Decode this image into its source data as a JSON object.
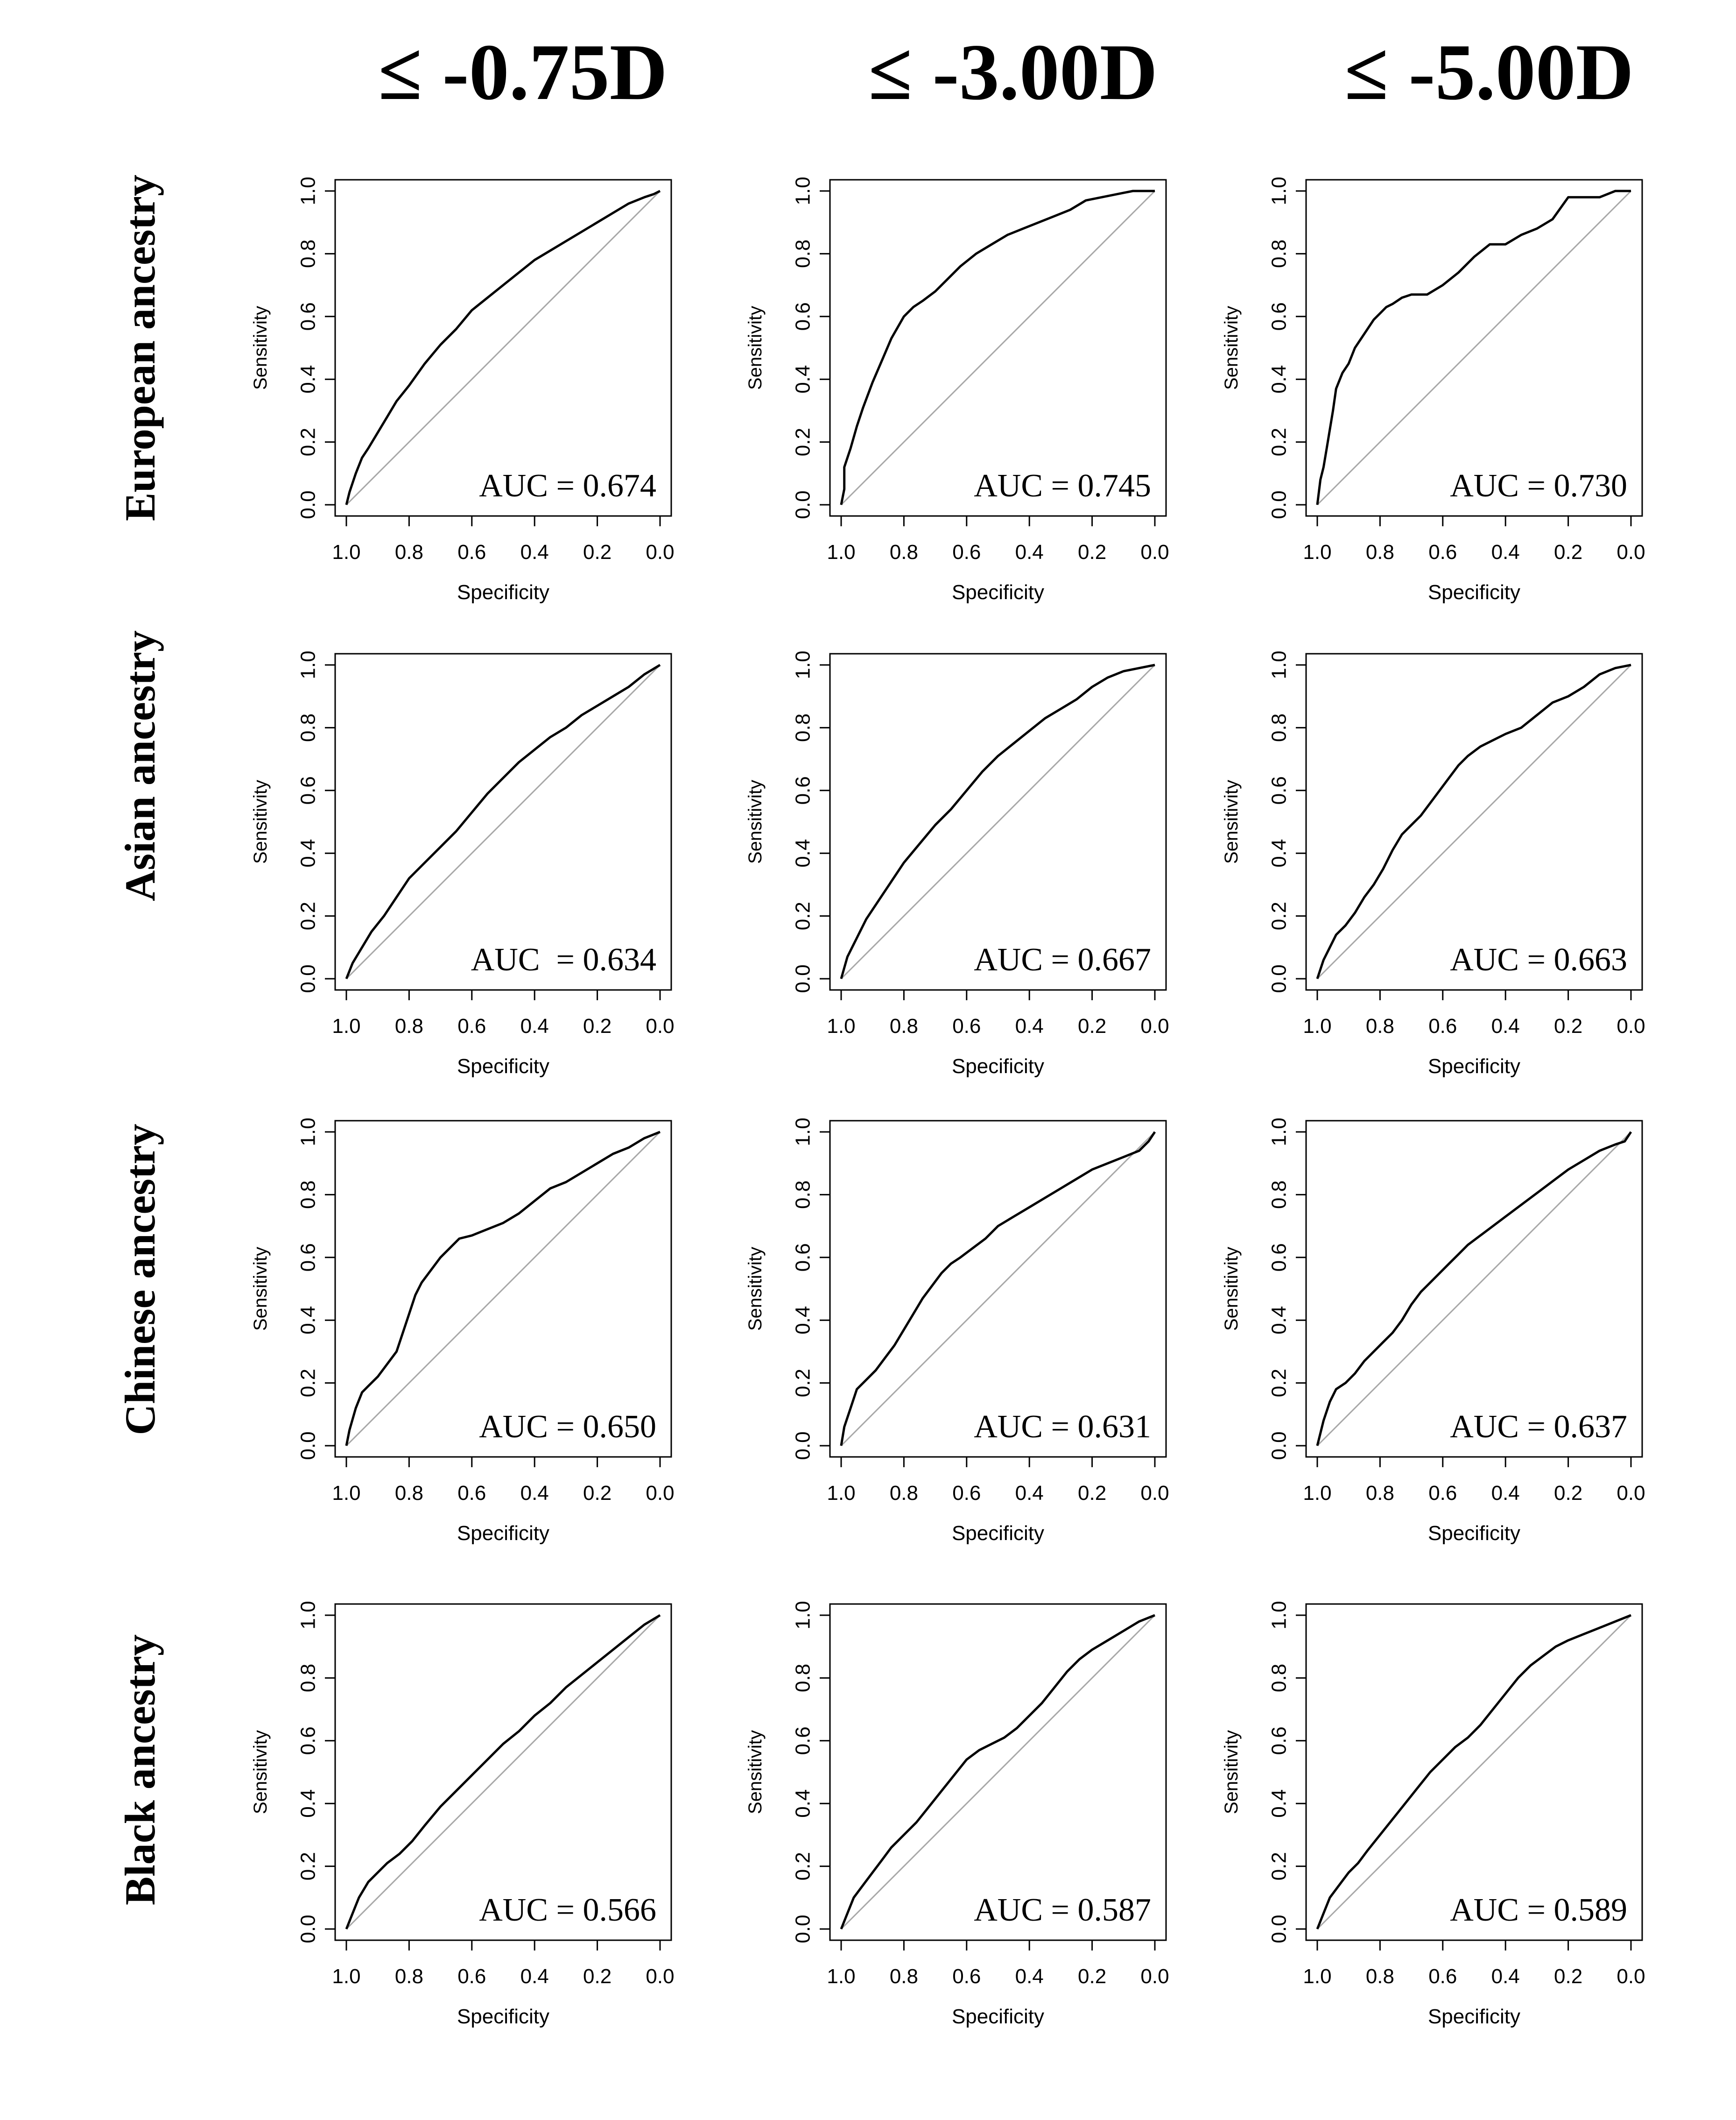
{
  "column_headers": [
    "≤ -0.75D",
    "≤  -3.00D",
    "≤ -5.00D"
  ],
  "row_labels": [
    "European ancestry",
    "Asian ancestry",
    "Chinese ancestry",
    "Black ancestry"
  ],
  "chart_data": [
    {
      "type": "line",
      "row": "European ancestry",
      "column": "≤ -0.75D",
      "xlabel": "Specificity",
      "ylabel": "Sensitivity",
      "xlim": [
        1.0,
        0.0
      ],
      "ylim": [
        0.0,
        1.0
      ],
      "x_ticks": [
        "1.0",
        "0.8",
        "0.6",
        "0.4",
        "0.2",
        "0.0"
      ],
      "y_ticks": [
        "0.0",
        "0.2",
        "0.4",
        "0.6",
        "0.8",
        "1.0"
      ],
      "annotation": "AUC = 0.674",
      "auc": 0.674,
      "diagonal_reference": true,
      "x": [
        1.0,
        0.99,
        0.97,
        0.95,
        0.93,
        0.9,
        0.87,
        0.84,
        0.8,
        0.75,
        0.7,
        0.65,
        0.6,
        0.55,
        0.5,
        0.45,
        0.4,
        0.35,
        0.3,
        0.25,
        0.2,
        0.15,
        0.1,
        0.05,
        0.02,
        0.0
      ],
      "y": [
        0.0,
        0.04,
        0.1,
        0.15,
        0.18,
        0.23,
        0.28,
        0.33,
        0.38,
        0.45,
        0.51,
        0.56,
        0.62,
        0.66,
        0.7,
        0.74,
        0.78,
        0.81,
        0.84,
        0.87,
        0.9,
        0.93,
        0.96,
        0.98,
        0.99,
        1.0
      ]
    },
    {
      "type": "line",
      "row": "European ancestry",
      "column": "≤  -3.00D",
      "xlabel": "Specificity",
      "ylabel": "Sensitivity",
      "xlim": [
        1.0,
        0.0
      ],
      "ylim": [
        0.0,
        1.0
      ],
      "x_ticks": [
        "1.0",
        "0.8",
        "0.6",
        "0.4",
        "0.2",
        "0.0"
      ],
      "y_ticks": [
        "0.0",
        "0.2",
        "0.4",
        "0.6",
        "0.8",
        "1.0"
      ],
      "annotation": "AUC = 0.745",
      "auc": 0.745,
      "diagonal_reference": true,
      "x": [
        1.0,
        0.99,
        0.99,
        0.97,
        0.95,
        0.93,
        0.9,
        0.87,
        0.84,
        0.8,
        0.77,
        0.74,
        0.7,
        0.66,
        0.62,
        0.57,
        0.52,
        0.47,
        0.42,
        0.37,
        0.32,
        0.27,
        0.22,
        0.17,
        0.12,
        0.07,
        0.0
      ],
      "y": [
        0.0,
        0.05,
        0.12,
        0.18,
        0.25,
        0.31,
        0.39,
        0.46,
        0.53,
        0.6,
        0.63,
        0.65,
        0.68,
        0.72,
        0.76,
        0.8,
        0.83,
        0.86,
        0.88,
        0.9,
        0.92,
        0.94,
        0.97,
        0.98,
        0.99,
        1.0,
        1.0
      ]
    },
    {
      "type": "line",
      "row": "European ancestry",
      "column": "≤ -5.00D",
      "xlabel": "Specificity",
      "ylabel": "Sensitivity",
      "xlim": [
        1.0,
        0.0
      ],
      "ylim": [
        0.0,
        1.0
      ],
      "x_ticks": [
        "1.0",
        "0.8",
        "0.6",
        "0.4",
        "0.2",
        "0.0"
      ],
      "y_ticks": [
        "0.0",
        "0.2",
        "0.4",
        "0.6",
        "0.8",
        "1.0"
      ],
      "annotation": "AUC = 0.730",
      "auc": 0.73,
      "diagonal_reference": true,
      "x": [
        1.0,
        0.99,
        0.98,
        0.97,
        0.96,
        0.95,
        0.94,
        0.92,
        0.9,
        0.88,
        0.86,
        0.84,
        0.82,
        0.8,
        0.78,
        0.76,
        0.73,
        0.7,
        0.65,
        0.6,
        0.55,
        0.5,
        0.45,
        0.4,
        0.35,
        0.3,
        0.25,
        0.2,
        0.15,
        0.1,
        0.05,
        0.0
      ],
      "y": [
        0.0,
        0.08,
        0.12,
        0.18,
        0.24,
        0.3,
        0.37,
        0.42,
        0.45,
        0.5,
        0.53,
        0.56,
        0.59,
        0.61,
        0.63,
        0.64,
        0.66,
        0.67,
        0.67,
        0.7,
        0.74,
        0.79,
        0.83,
        0.83,
        0.86,
        0.88,
        0.91,
        0.98,
        0.98,
        0.98,
        1.0,
        1.0
      ]
    },
    {
      "type": "line",
      "row": "Asian ancestry",
      "column": "≤ -0.75D",
      "xlabel": "Specificity",
      "ylabel": "Sensitivity",
      "xlim": [
        1.0,
        0.0
      ],
      "ylim": [
        0.0,
        1.0
      ],
      "x_ticks": [
        "1.0",
        "0.8",
        "0.6",
        "0.4",
        "0.2",
        "0.0"
      ],
      "y_ticks": [
        "0.0",
        "0.2",
        "0.4",
        "0.6",
        "0.8",
        "1.0"
      ],
      "annotation": "AUC  = 0.634",
      "auc": 0.634,
      "diagonal_reference": true,
      "x": [
        1.0,
        0.98,
        0.95,
        0.92,
        0.88,
        0.84,
        0.8,
        0.75,
        0.7,
        0.65,
        0.6,
        0.55,
        0.5,
        0.45,
        0.4,
        0.35,
        0.3,
        0.25,
        0.2,
        0.15,
        0.1,
        0.05,
        0.0
      ],
      "y": [
        0.0,
        0.05,
        0.1,
        0.15,
        0.2,
        0.26,
        0.32,
        0.37,
        0.42,
        0.47,
        0.53,
        0.59,
        0.64,
        0.69,
        0.73,
        0.77,
        0.8,
        0.84,
        0.87,
        0.9,
        0.93,
        0.97,
        1.0
      ]
    },
    {
      "type": "line",
      "row": "Asian ancestry",
      "column": "≤  -3.00D",
      "xlabel": "Specificity",
      "ylabel": "Sensitivity",
      "xlim": [
        1.0,
        0.0
      ],
      "ylim": [
        0.0,
        1.0
      ],
      "x_ticks": [
        "1.0",
        "0.8",
        "0.6",
        "0.4",
        "0.2",
        "0.0"
      ],
      "y_ticks": [
        "0.0",
        "0.2",
        "0.4",
        "0.6",
        "0.8",
        "1.0"
      ],
      "annotation": "AUC = 0.667",
      "auc": 0.667,
      "diagonal_reference": true,
      "x": [
        1.0,
        0.98,
        0.95,
        0.92,
        0.88,
        0.84,
        0.8,
        0.75,
        0.7,
        0.65,
        0.6,
        0.55,
        0.5,
        0.45,
        0.4,
        0.35,
        0.3,
        0.25,
        0.2,
        0.15,
        0.1,
        0.05,
        0.0
      ],
      "y": [
        0.0,
        0.07,
        0.13,
        0.19,
        0.25,
        0.31,
        0.37,
        0.43,
        0.49,
        0.54,
        0.6,
        0.66,
        0.71,
        0.75,
        0.79,
        0.83,
        0.86,
        0.89,
        0.93,
        0.96,
        0.98,
        0.99,
        1.0
      ]
    },
    {
      "type": "line",
      "row": "Asian ancestry",
      "column": "≤ -5.00D",
      "xlabel": "Specificity",
      "ylabel": "Sensitivity",
      "xlim": [
        1.0,
        0.0
      ],
      "ylim": [
        0.0,
        1.0
      ],
      "x_ticks": [
        "1.0",
        "0.8",
        "0.6",
        "0.4",
        "0.2",
        "0.0"
      ],
      "y_ticks": [
        "0.0",
        "0.2",
        "0.4",
        "0.6",
        "0.8",
        "1.0"
      ],
      "annotation": "AUC = 0.663",
      "auc": 0.663,
      "diagonal_reference": true,
      "x": [
        1.0,
        0.98,
        0.96,
        0.94,
        0.91,
        0.88,
        0.85,
        0.82,
        0.79,
        0.76,
        0.73,
        0.7,
        0.67,
        0.64,
        0.61,
        0.58,
        0.55,
        0.52,
        0.48,
        0.44,
        0.4,
        0.35,
        0.3,
        0.25,
        0.2,
        0.15,
        0.1,
        0.05,
        0.0
      ],
      "y": [
        0.0,
        0.06,
        0.1,
        0.14,
        0.17,
        0.21,
        0.26,
        0.3,
        0.35,
        0.41,
        0.46,
        0.49,
        0.52,
        0.56,
        0.6,
        0.64,
        0.68,
        0.71,
        0.74,
        0.76,
        0.78,
        0.8,
        0.84,
        0.88,
        0.9,
        0.93,
        0.97,
        0.99,
        1.0
      ]
    },
    {
      "type": "line",
      "row": "Chinese ancestry",
      "column": "≤ -0.75D",
      "xlabel": "Specificity",
      "ylabel": "Sensitivity",
      "xlim": [
        1.0,
        0.0
      ],
      "ylim": [
        0.0,
        1.0
      ],
      "x_ticks": [
        "1.0",
        "0.8",
        "0.6",
        "0.4",
        "0.2",
        "0.0"
      ],
      "y_ticks": [
        "0.0",
        "0.2",
        "0.4",
        "0.6",
        "0.8",
        "1.0"
      ],
      "annotation": "AUC = 0.650",
      "auc": 0.65,
      "diagonal_reference": true,
      "x": [
        1.0,
        0.99,
        0.97,
        0.95,
        0.93,
        0.9,
        0.87,
        0.84,
        0.82,
        0.8,
        0.78,
        0.76,
        0.73,
        0.7,
        0.67,
        0.64,
        0.6,
        0.55,
        0.5,
        0.45,
        0.4,
        0.35,
        0.3,
        0.25,
        0.2,
        0.15,
        0.1,
        0.05,
        0.0
      ],
      "y": [
        0.0,
        0.05,
        0.12,
        0.17,
        0.19,
        0.22,
        0.26,
        0.3,
        0.36,
        0.42,
        0.48,
        0.52,
        0.56,
        0.6,
        0.63,
        0.66,
        0.67,
        0.69,
        0.71,
        0.74,
        0.78,
        0.82,
        0.84,
        0.87,
        0.9,
        0.93,
        0.95,
        0.98,
        1.0
      ]
    },
    {
      "type": "line",
      "row": "Chinese ancestry",
      "column": "≤  -3.00D",
      "xlabel": "Specificity",
      "ylabel": "Sensitivity",
      "xlim": [
        1.0,
        0.0
      ],
      "ylim": [
        0.0,
        1.0
      ],
      "x_ticks": [
        "1.0",
        "0.8",
        "0.6",
        "0.4",
        "0.2",
        "0.0"
      ],
      "y_ticks": [
        "0.0",
        "0.2",
        "0.4",
        "0.6",
        "0.8",
        "1.0"
      ],
      "annotation": "AUC = 0.631",
      "auc": 0.631,
      "diagonal_reference": true,
      "x": [
        1.0,
        0.99,
        0.97,
        0.95,
        0.92,
        0.89,
        0.86,
        0.83,
        0.8,
        0.77,
        0.74,
        0.71,
        0.68,
        0.65,
        0.62,
        0.58,
        0.54,
        0.5,
        0.45,
        0.4,
        0.35,
        0.3,
        0.25,
        0.2,
        0.15,
        0.1,
        0.05,
        0.02,
        0.0
      ],
      "y": [
        0.0,
        0.06,
        0.12,
        0.18,
        0.21,
        0.24,
        0.28,
        0.32,
        0.37,
        0.42,
        0.47,
        0.51,
        0.55,
        0.58,
        0.6,
        0.63,
        0.66,
        0.7,
        0.73,
        0.76,
        0.79,
        0.82,
        0.85,
        0.88,
        0.9,
        0.92,
        0.94,
        0.97,
        1.0
      ]
    },
    {
      "type": "line",
      "row": "Chinese ancestry",
      "column": "≤ -5.00D",
      "xlabel": "Specificity",
      "ylabel": "Sensitivity",
      "xlim": [
        1.0,
        0.0
      ],
      "ylim": [
        0.0,
        1.0
      ],
      "x_ticks": [
        "1.0",
        "0.8",
        "0.6",
        "0.4",
        "0.2",
        "0.0"
      ],
      "y_ticks": [
        "0.0",
        "0.2",
        "0.4",
        "0.6",
        "0.8",
        "1.0"
      ],
      "annotation": "AUC = 0.637",
      "auc": 0.637,
      "diagonal_reference": true,
      "x": [
        1.0,
        0.98,
        0.96,
        0.94,
        0.91,
        0.88,
        0.85,
        0.82,
        0.79,
        0.76,
        0.73,
        0.7,
        0.67,
        0.64,
        0.61,
        0.58,
        0.55,
        0.52,
        0.48,
        0.44,
        0.4,
        0.36,
        0.32,
        0.28,
        0.24,
        0.2,
        0.15,
        0.1,
        0.05,
        0.02,
        0.0
      ],
      "y": [
        0.0,
        0.08,
        0.14,
        0.18,
        0.2,
        0.23,
        0.27,
        0.3,
        0.33,
        0.36,
        0.4,
        0.45,
        0.49,
        0.52,
        0.55,
        0.58,
        0.61,
        0.64,
        0.67,
        0.7,
        0.73,
        0.76,
        0.79,
        0.82,
        0.85,
        0.88,
        0.91,
        0.94,
        0.96,
        0.97,
        1.0
      ]
    },
    {
      "type": "line",
      "row": "Black ancestry",
      "column": "≤ -0.75D",
      "xlabel": "Specificity",
      "ylabel": "Sensitivity",
      "xlim": [
        1.0,
        0.0
      ],
      "ylim": [
        0.0,
        1.0
      ],
      "x_ticks": [
        "1.0",
        "0.8",
        "0.6",
        "0.4",
        "0.2",
        "0.0"
      ],
      "y_ticks": [
        "0.0",
        "0.2",
        "0.4",
        "0.6",
        "0.8",
        "1.0"
      ],
      "annotation": "AUC = 0.566",
      "auc": 0.566,
      "diagonal_reference": true,
      "x": [
        1.0,
        0.98,
        0.96,
        0.93,
        0.9,
        0.87,
        0.83,
        0.79,
        0.75,
        0.7,
        0.65,
        0.6,
        0.55,
        0.5,
        0.45,
        0.4,
        0.35,
        0.3,
        0.25,
        0.2,
        0.15,
        0.1,
        0.05,
        0.0
      ],
      "y": [
        0.0,
        0.05,
        0.1,
        0.15,
        0.18,
        0.21,
        0.24,
        0.28,
        0.33,
        0.39,
        0.44,
        0.49,
        0.54,
        0.59,
        0.63,
        0.68,
        0.72,
        0.77,
        0.81,
        0.85,
        0.89,
        0.93,
        0.97,
        1.0
      ]
    },
    {
      "type": "line",
      "row": "Black ancestry",
      "column": "≤  -3.00D",
      "xlabel": "Specificity",
      "ylabel": "Sensitivity",
      "xlim": [
        1.0,
        0.0
      ],
      "ylim": [
        0.0,
        1.0
      ],
      "x_ticks": [
        "1.0",
        "0.8",
        "0.6",
        "0.4",
        "0.2",
        "0.0"
      ],
      "y_ticks": [
        "0.0",
        "0.2",
        "0.4",
        "0.6",
        "0.8",
        "1.0"
      ],
      "annotation": "AUC = 0.587",
      "auc": 0.587,
      "diagonal_reference": true,
      "x": [
        1.0,
        0.98,
        0.96,
        0.93,
        0.9,
        0.87,
        0.84,
        0.8,
        0.76,
        0.72,
        0.68,
        0.64,
        0.6,
        0.56,
        0.52,
        0.48,
        0.44,
        0.4,
        0.36,
        0.32,
        0.28,
        0.24,
        0.2,
        0.15,
        0.1,
        0.05,
        0.0
      ],
      "y": [
        0.0,
        0.05,
        0.1,
        0.14,
        0.18,
        0.22,
        0.26,
        0.3,
        0.34,
        0.39,
        0.44,
        0.49,
        0.54,
        0.57,
        0.59,
        0.61,
        0.64,
        0.68,
        0.72,
        0.77,
        0.82,
        0.86,
        0.89,
        0.92,
        0.95,
        0.98,
        1.0
      ]
    },
    {
      "type": "line",
      "row": "Black ancestry",
      "column": "≤ -5.00D",
      "xlabel": "Specificity",
      "ylabel": "Sensitivity",
      "xlim": [
        1.0,
        0.0
      ],
      "ylim": [
        0.0,
        1.0
      ],
      "x_ticks": [
        "1.0",
        "0.8",
        "0.6",
        "0.4",
        "0.2",
        "0.0"
      ],
      "y_ticks": [
        "0.0",
        "0.2",
        "0.4",
        "0.6",
        "0.8",
        "1.0"
      ],
      "annotation": "AUC = 0.589",
      "auc": 0.589,
      "diagonal_reference": true,
      "x": [
        1.0,
        0.98,
        0.96,
        0.93,
        0.9,
        0.87,
        0.84,
        0.8,
        0.76,
        0.72,
        0.68,
        0.64,
        0.6,
        0.56,
        0.52,
        0.48,
        0.44,
        0.4,
        0.36,
        0.32,
        0.28,
        0.24,
        0.2,
        0.15,
        0.1,
        0.05,
        0.0
      ],
      "y": [
        0.0,
        0.05,
        0.1,
        0.14,
        0.18,
        0.21,
        0.25,
        0.3,
        0.35,
        0.4,
        0.45,
        0.5,
        0.54,
        0.58,
        0.61,
        0.65,
        0.7,
        0.75,
        0.8,
        0.84,
        0.87,
        0.9,
        0.92,
        0.94,
        0.96,
        0.98,
        1.0
      ]
    }
  ]
}
